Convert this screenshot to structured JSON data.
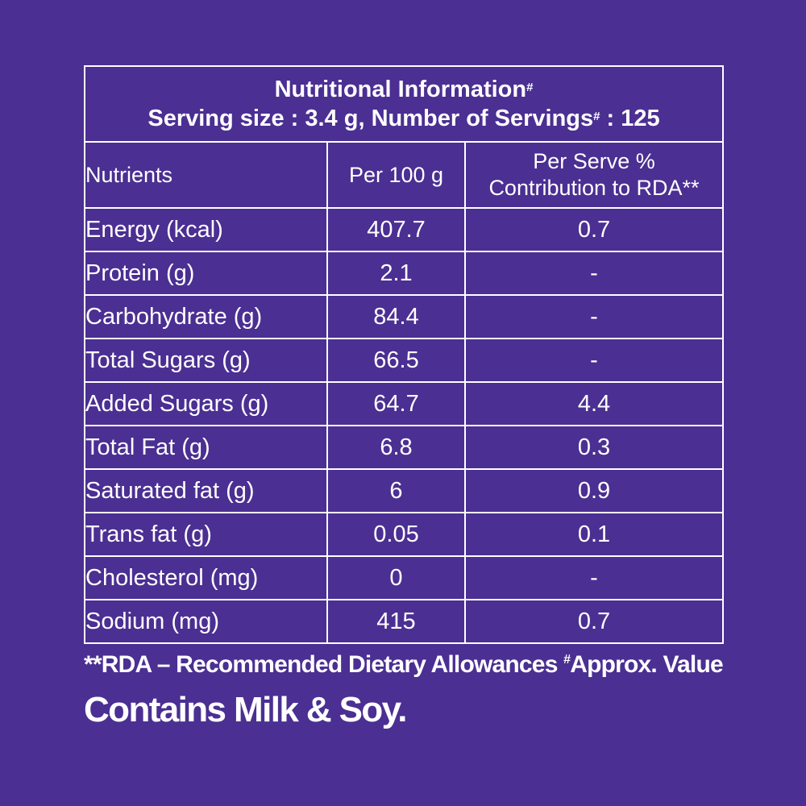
{
  "table": {
    "title_line1": "Nutritional Information",
    "title_line1_mark": "#",
    "title_line2_prefix": "Serving size : 3.4 g, Number of Servings",
    "title_line2_mark": "#",
    "title_line2_suffix": " : 125",
    "headers": {
      "nutrients": "Nutrients",
      "per100": "Per 100 g",
      "rda_line1": "Per Serve %",
      "rda_line2": "Contribution to RDA**"
    },
    "rows": [
      {
        "nutrient": "Energy (kcal)",
        "per100": "407.7",
        "rda": "0.7"
      },
      {
        "nutrient": "Protein (g)",
        "per100": "2.1",
        "rda": "-"
      },
      {
        "nutrient": "Carbohydrate (g)",
        "per100": "84.4",
        "rda": "-"
      },
      {
        "nutrient": "Total Sugars (g)",
        "per100": "66.5",
        "rda": "-"
      },
      {
        "nutrient": "Added Sugars (g)",
        "per100": "64.7",
        "rda": "4.4"
      },
      {
        "nutrient": "Total Fat (g)",
        "per100": "6.8",
        "rda": "0.3"
      },
      {
        "nutrient": "Saturated fat (g)",
        "per100": "6",
        "rda": "0.9"
      },
      {
        "nutrient": "Trans fat (g)",
        "per100": "0.05",
        "rda": "0.1"
      },
      {
        "nutrient": "Cholesterol (mg)",
        "per100": "0",
        "rda": "-"
      },
      {
        "nutrient": "Sodium (mg)",
        "per100": "415",
        "rda": "0.7"
      }
    ]
  },
  "footnote": {
    "rda_text": "**RDA – Recommended Dietary Allowances ",
    "approx_mark": "#",
    "approx_text": "Approx. Value"
  },
  "allergen": "Contains Milk & Soy.",
  "colors": {
    "background": "#4b2f92",
    "text": "#ffffff",
    "border": "#ffffff"
  }
}
